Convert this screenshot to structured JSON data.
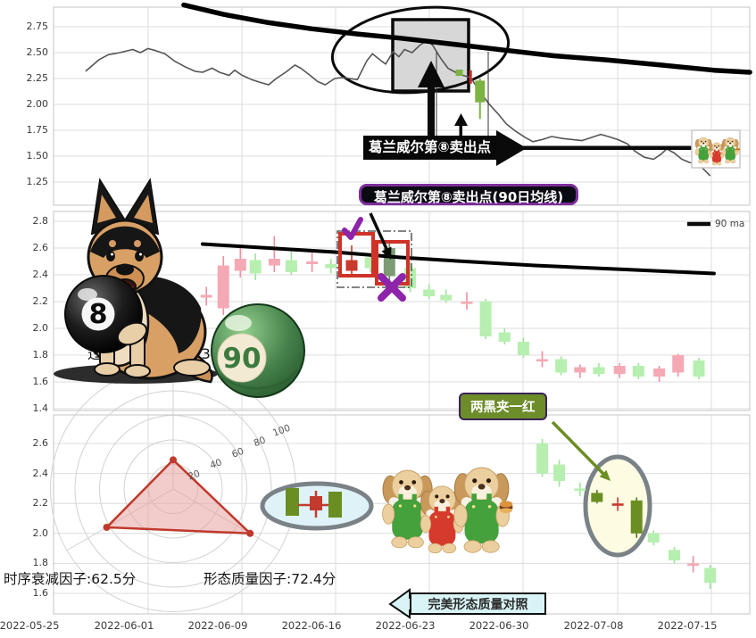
{
  "annotations": {
    "top_sell_point": "葛兰威尔第⑧卖出点",
    "mid_sell_point": "葛兰威尔第⑧卖出点(90日均线)",
    "pattern": "两黑夹一红",
    "perfect_compare": "完美形态质量对照",
    "factor_mid": "过激与报复因子:23.7分",
    "factor_time": "时序衰减因子:62.5分",
    "factor_quality": "形态质量因子:72.4分"
  },
  "legend": {
    "ma90": "90 ma"
  },
  "decorations": {
    "eight_ball_number": "8",
    "ninety_ball_number": "90",
    "german_shepherd": "cartoon german shepherd holding 8-ball",
    "puppies": "three puppy plush toys, green-red-green overalls"
  },
  "axes": {
    "x_ticks": [
      "2022-05-25",
      "2022-06-01",
      "2022-06-09",
      "2022-06-16",
      "2022-06-23",
      "2022-06-30",
      "2022-07-08",
      "2022-07-15"
    ],
    "top_y_ticks": [
      "2.75",
      "2.50",
      "2.25",
      "2.00",
      "1.75",
      "1.50",
      "1.25"
    ],
    "mid_y_ticks": [
      "2.8",
      "2.6",
      "2.4",
      "2.2",
      "2.0",
      "1.8",
      "1.6",
      "1.4"
    ],
    "bottom_y_ticks": [
      "2.6",
      "2.4",
      "2.2",
      "2.0",
      "1.8",
      "1.6"
    ]
  },
  "colors": {
    "up_candle": "#f5a9b5",
    "down_candle": "#b6efb0",
    "dark_red_candle": "#c9392c",
    "olive_candle": "#6b8e23",
    "sage_candle": "#7d9b74",
    "ma_line": "#000000",
    "price_line": "#555555",
    "grid": "#dcdcdc",
    "highlight_box": "#cf3328",
    "purple_mark": "#8e24aa",
    "green_arrow": "#6b8e23",
    "radar_fill": "#e8a0a0",
    "radar_edge": "#c0392b"
  },
  "chart_data": [
    {
      "type": "line",
      "panel": "top",
      "ylabel": "",
      "ylim": [
        1.05,
        2.95
      ],
      "x_unit": "trading days since 2022-05-25",
      "series": [
        {
          "name": "price",
          "points": [
            [
              1.7,
              2.32
            ],
            [
              2.4,
              2.43
            ],
            [
              2.9,
              2.48
            ],
            [
              3.5,
              2.5
            ],
            [
              4.2,
              2.53
            ],
            [
              4.6,
              2.5
            ],
            [
              5.0,
              2.54
            ],
            [
              5.4,
              2.52
            ],
            [
              5.9,
              2.49
            ],
            [
              6.4,
              2.42
            ],
            [
              7.0,
              2.36
            ],
            [
              7.5,
              2.32
            ],
            [
              7.9,
              2.31
            ],
            [
              8.4,
              2.35
            ],
            [
              8.8,
              2.31
            ],
            [
              9.3,
              2.28
            ],
            [
              9.6,
              2.33
            ],
            [
              10.0,
              2.28
            ],
            [
              10.5,
              2.24
            ],
            [
              11.0,
              2.21
            ],
            [
              11.4,
              2.19
            ],
            [
              11.8,
              2.25
            ],
            [
              12.3,
              2.31
            ],
            [
              12.8,
              2.38
            ],
            [
              13.1,
              2.35
            ],
            [
              13.6,
              2.28
            ],
            [
              14.0,
              2.22
            ],
            [
              14.4,
              2.19
            ],
            [
              14.9,
              2.25
            ],
            [
              15.3,
              2.26
            ],
            [
              15.7,
              2.25
            ],
            [
              16.1,
              2.24
            ],
            [
              16.6,
              2.42
            ],
            [
              16.9,
              2.49
            ],
            [
              17.3,
              2.43
            ],
            [
              17.6,
              2.39
            ],
            [
              18.0,
              2.51
            ],
            [
              18.3,
              2.46
            ],
            [
              18.6,
              2.53
            ],
            [
              19.0,
              2.5
            ],
            [
              19.4,
              2.57
            ],
            [
              19.8,
              2.62
            ],
            [
              20.1,
              2.57
            ],
            [
              20.5,
              2.45
            ],
            [
              20.9,
              2.35
            ],
            [
              21.3,
              2.31
            ],
            [
              21.7,
              2.28
            ],
            [
              22.1,
              2.26
            ],
            [
              22.6,
              2.12
            ],
            [
              23.1,
              2.0
            ],
            [
              23.6,
              1.9
            ],
            [
              24.0,
              1.81
            ],
            [
              24.5,
              1.74
            ],
            [
              25.0,
              1.68
            ],
            [
              25.4,
              1.64
            ],
            [
              25.9,
              1.66
            ],
            [
              26.4,
              1.69
            ],
            [
              27.0,
              1.67
            ],
            [
              27.5,
              1.66
            ],
            [
              28.0,
              1.65
            ],
            [
              28.5,
              1.68
            ],
            [
              29.0,
              1.71
            ],
            [
              29.4,
              1.69
            ],
            [
              29.9,
              1.66
            ],
            [
              30.4,
              1.62
            ],
            [
              30.8,
              1.55
            ],
            [
              31.3,
              1.49
            ],
            [
              31.8,
              1.47
            ],
            [
              32.2,
              1.52
            ],
            [
              32.5,
              1.57
            ],
            [
              32.9,
              1.53
            ],
            [
              33.3,
              1.47
            ],
            [
              33.7,
              1.44
            ],
            [
              34.2,
              1.42
            ],
            [
              34.8,
              1.31
            ]
          ]
        },
        {
          "name": "ma",
          "points": [
            [
              6.9,
              2.96
            ],
            [
              9.0,
              2.87
            ],
            [
              11.4,
              2.79
            ],
            [
              13.7,
              2.73
            ],
            [
              16.1,
              2.68
            ],
            [
              18.4,
              2.64
            ],
            [
              20.3,
              2.6
            ],
            [
              22.2,
              2.56
            ],
            [
              24.1,
              2.52
            ],
            [
              26.5,
              2.47
            ],
            [
              29.3,
              2.43
            ],
            [
              32.2,
              2.38
            ],
            [
              35.0,
              2.33
            ],
            [
              36.9,
              2.31
            ]
          ]
        }
      ],
      "overlay_candles": [
        [
          21.5,
          2.31,
          2.31,
          2.27,
          2.27,
          "dot"
        ],
        [
          22.1,
          2.33,
          2.33,
          2.2,
          2.2,
          "redtick"
        ],
        [
          22.6,
          2.23,
          2.25,
          1.86,
          2.02,
          "green"
        ]
      ]
    },
    {
      "type": "candlestick",
      "panel": "middle",
      "ylim": [
        1.39,
        2.87
      ],
      "legend": [
        "90 ma"
      ],
      "candles": [
        [
          8.1,
          2.23,
          2.31,
          2.17,
          2.25,
          "p"
        ],
        [
          9.0,
          2.15,
          2.54,
          2.1,
          2.47,
          "p"
        ],
        [
          9.9,
          2.43,
          2.62,
          2.38,
          2.52,
          "p"
        ],
        [
          10.7,
          2.51,
          2.56,
          2.36,
          2.41,
          "g"
        ],
        [
          11.7,
          2.47,
          2.69,
          2.42,
          2.52,
          "p"
        ],
        [
          12.6,
          2.51,
          2.6,
          2.4,
          2.42,
          "g"
        ],
        [
          13.7,
          2.48,
          2.57,
          2.42,
          2.5,
          "p"
        ],
        [
          14.7,
          2.48,
          2.52,
          2.41,
          2.45,
          "g"
        ],
        [
          15.8,
          2.43,
          2.62,
          2.4,
          2.51,
          "r"
        ],
        [
          16.8,
          2.45,
          2.56,
          2.42,
          2.53,
          "g"
        ],
        [
          17.8,
          2.6,
          2.64,
          2.32,
          2.39,
          "s"
        ],
        [
          18.9,
          2.45,
          2.5,
          2.27,
          2.3,
          "g"
        ],
        [
          19.9,
          2.29,
          2.33,
          2.22,
          2.24,
          "g"
        ],
        [
          20.8,
          2.25,
          2.29,
          2.19,
          2.21,
          "g"
        ],
        [
          21.9,
          2.2,
          2.27,
          2.14,
          2.2,
          "p"
        ],
        [
          22.9,
          2.2,
          2.22,
          1.92,
          1.94,
          "g"
        ],
        [
          23.9,
          1.97,
          2.0,
          1.88,
          1.9,
          "g"
        ],
        [
          24.9,
          1.9,
          1.93,
          1.78,
          1.8,
          "g"
        ],
        [
          25.9,
          1.77,
          1.83,
          1.71,
          1.77,
          "p"
        ],
        [
          26.9,
          1.77,
          1.79,
          1.65,
          1.67,
          "g"
        ],
        [
          27.9,
          1.67,
          1.73,
          1.63,
          1.71,
          "p"
        ],
        [
          28.9,
          1.71,
          1.74,
          1.64,
          1.66,
          "g"
        ],
        [
          30.0,
          1.66,
          1.74,
          1.63,
          1.72,
          "p"
        ],
        [
          31.0,
          1.72,
          1.74,
          1.62,
          1.64,
          "g"
        ],
        [
          32.1,
          1.64,
          1.72,
          1.6,
          1.7,
          "p"
        ],
        [
          33.1,
          1.67,
          1.81,
          1.64,
          1.8,
          "p"
        ],
        [
          34.2,
          1.76,
          1.78,
          1.62,
          1.64,
          "g"
        ]
      ],
      "ma_points": [
        [
          7.9,
          2.63
        ],
        [
          11.4,
          2.6
        ],
        [
          14.9,
          2.57
        ],
        [
          18.4,
          2.53
        ],
        [
          21.8,
          2.5
        ],
        [
          25.5,
          2.47
        ],
        [
          30.3,
          2.44
        ],
        [
          35.0,
          2.41
        ]
      ]
    },
    {
      "type": "candlestick",
      "panel": "bottom",
      "ylim": [
        1.46,
        2.79
      ],
      "candles": [
        [
          25.9,
          2.6,
          2.63,
          2.38,
          2.4,
          "g"
        ],
        [
          26.8,
          2.46,
          2.49,
          2.31,
          2.35,
          "g"
        ],
        [
          27.9,
          2.3,
          2.34,
          2.25,
          2.3,
          "g"
        ],
        [
          28.8,
          2.27,
          2.29,
          2.2,
          2.21,
          "o"
        ],
        [
          29.9,
          2.2,
          2.24,
          2.15,
          2.2,
          "r"
        ],
        [
          30.9,
          2.22,
          2.24,
          1.97,
          2.0,
          "o"
        ],
        [
          31.8,
          2.0,
          2.02,
          1.92,
          1.94,
          "g"
        ],
        [
          32.9,
          1.89,
          1.91,
          1.8,
          1.82,
          "g"
        ],
        [
          33.9,
          1.8,
          1.85,
          1.74,
          1.8,
          "p"
        ],
        [
          34.8,
          1.77,
          1.79,
          1.63,
          1.67,
          "g"
        ]
      ],
      "radar": {
        "axes": [
          "过激与报复因子",
          "时序衰减因子",
          "形态质量因子"
        ],
        "values": [
          23.7,
          62.5,
          72.4
        ],
        "max": 100,
        "ticks": [
          "20",
          "40",
          "60",
          "80",
          "100"
        ]
      }
    }
  ]
}
